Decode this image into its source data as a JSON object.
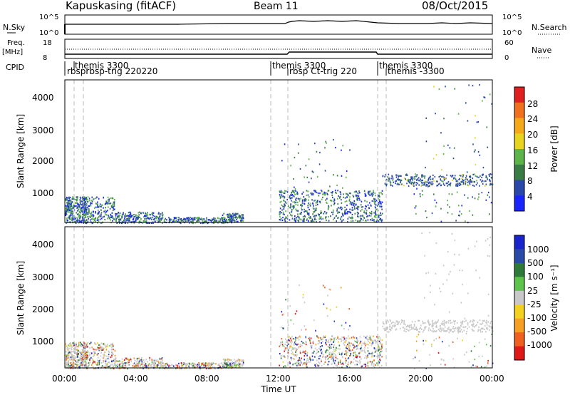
{
  "header": {
    "station": "Kapuskasing (fitACF)",
    "beam": "Beam 11",
    "date": "08/Oct/2015"
  },
  "top_panels": {
    "nsky_label": "N.Sky",
    "nsky_ticks": [
      "10^5",
      "10^0"
    ],
    "nsearch_label": "N.Search",
    "nsearch_ticks": [
      "10^5",
      "10^0"
    ],
    "freq_label": "Freq.",
    "freq_unit": "[MHz]",
    "freq_ticks": [
      "18",
      "8"
    ],
    "nave_label": "Nave",
    "nave_ticks": [
      "60",
      "0"
    ],
    "cpid_label": "CPID"
  },
  "cpid": [
    {
      "t": 0.0,
      "top": "",
      "bottom": "rbsprbsp-trig 220220"
    },
    {
      "t": 0.5,
      "top": "themis 3300",
      "bottom": ""
    },
    {
      "t": 12.0,
      "top": "themis 3300",
      "bottom": "rbsp Ct-trig 220"
    },
    {
      "t": 18.0,
      "top": "themis 3300",
      "bottom": "themis -3300"
    }
  ],
  "chart_data": [
    {
      "type": "heatmap",
      "title": "Power",
      "xlabel": "",
      "ylabel": "Slant Range [km]",
      "xlim": [
        0,
        24
      ],
      "ylim": [
        180,
        4600
      ],
      "yticks": [
        "1000",
        "2000",
        "3000",
        "4000"
      ],
      "colorbar_label": "Power [dB]",
      "colorbar_ticks": [
        "4",
        "8",
        "12",
        "16",
        "20",
        "24",
        "28"
      ],
      "colors": [
        "#1a24ff",
        "#2a48a8",
        "#3a7d44",
        "#5db54a",
        "#e8d41e",
        "#f5a818",
        "#f07020",
        "#e02020"
      ]
    },
    {
      "type": "heatmap",
      "title": "Velocity",
      "xlabel": "Time UT",
      "ylabel": "Slant Range [km]",
      "xlim": [
        0,
        24
      ],
      "ylim": [
        180,
        4600
      ],
      "yticks": [
        "1000",
        "2000",
        "3000",
        "4000"
      ],
      "xticks": [
        "00:00",
        "04:00",
        "08:00",
        "12:00",
        "16:00",
        "20:00",
        "00:00"
      ],
      "colorbar_label": "Velocity [m s⁻¹]",
      "colorbar_ticks": [
        "1000",
        "500",
        "100",
        "25",
        "-25",
        "-100",
        "-500",
        "-1000"
      ],
      "colors": [
        "#1a24cc",
        "#2a4aa8",
        "#2e7a3a",
        "#5cc44a",
        "#c8c8c8",
        "#f2d21e",
        "#f5a020",
        "#f06020",
        "#e01818"
      ]
    }
  ]
}
